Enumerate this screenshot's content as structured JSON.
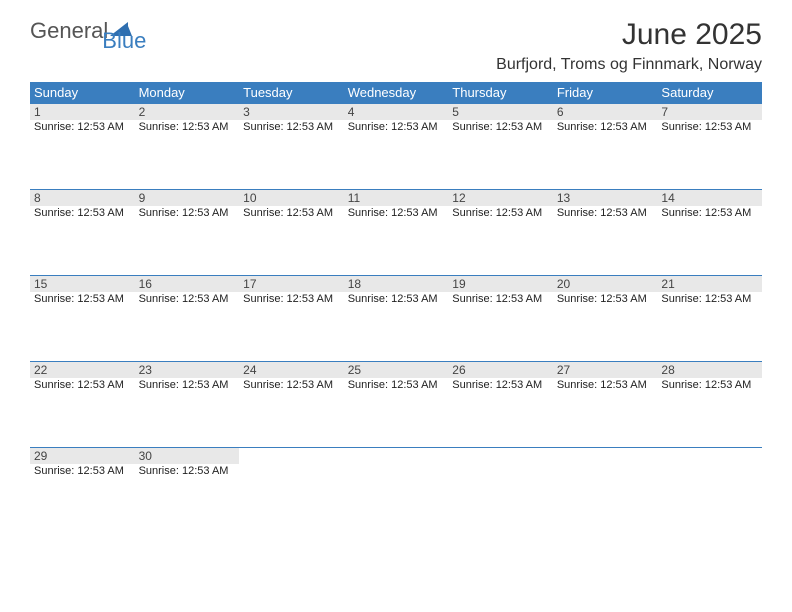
{
  "logo": {
    "text_general": "General",
    "text_blue": "Blue",
    "shape_color": "#2f6fb0"
  },
  "title": "June 2025",
  "location": "Burfjord, Troms og Finnmark, Norway",
  "colors": {
    "header_bg": "#3a7ebf",
    "header_text": "#ffffff",
    "daynum_bg": "#e8e8e8",
    "border": "#3a7ebf",
    "page_bg": "#ffffff"
  },
  "day_headers": [
    "Sunday",
    "Monday",
    "Tuesday",
    "Wednesday",
    "Thursday",
    "Friday",
    "Saturday"
  ],
  "weeks": [
    [
      {
        "num": "1",
        "info": "Sunrise: 12:53 AM"
      },
      {
        "num": "2",
        "info": "Sunrise: 12:53 AM"
      },
      {
        "num": "3",
        "info": "Sunrise: 12:53 AM"
      },
      {
        "num": "4",
        "info": "Sunrise: 12:53 AM"
      },
      {
        "num": "5",
        "info": "Sunrise: 12:53 AM"
      },
      {
        "num": "6",
        "info": "Sunrise: 12:53 AM"
      },
      {
        "num": "7",
        "info": "Sunrise: 12:53 AM"
      }
    ],
    [
      {
        "num": "8",
        "info": "Sunrise: 12:53 AM"
      },
      {
        "num": "9",
        "info": "Sunrise: 12:53 AM"
      },
      {
        "num": "10",
        "info": "Sunrise: 12:53 AM"
      },
      {
        "num": "11",
        "info": "Sunrise: 12:53 AM"
      },
      {
        "num": "12",
        "info": "Sunrise: 12:53 AM"
      },
      {
        "num": "13",
        "info": "Sunrise: 12:53 AM"
      },
      {
        "num": "14",
        "info": "Sunrise: 12:53 AM"
      }
    ],
    [
      {
        "num": "15",
        "info": "Sunrise: 12:53 AM"
      },
      {
        "num": "16",
        "info": "Sunrise: 12:53 AM"
      },
      {
        "num": "17",
        "info": "Sunrise: 12:53 AM"
      },
      {
        "num": "18",
        "info": "Sunrise: 12:53 AM"
      },
      {
        "num": "19",
        "info": "Sunrise: 12:53 AM"
      },
      {
        "num": "20",
        "info": "Sunrise: 12:53 AM"
      },
      {
        "num": "21",
        "info": "Sunrise: 12:53 AM"
      }
    ],
    [
      {
        "num": "22",
        "info": "Sunrise: 12:53 AM"
      },
      {
        "num": "23",
        "info": "Sunrise: 12:53 AM"
      },
      {
        "num": "24",
        "info": "Sunrise: 12:53 AM"
      },
      {
        "num": "25",
        "info": "Sunrise: 12:53 AM"
      },
      {
        "num": "26",
        "info": "Sunrise: 12:53 AM"
      },
      {
        "num": "27",
        "info": "Sunrise: 12:53 AM"
      },
      {
        "num": "28",
        "info": "Sunrise: 12:53 AM"
      }
    ],
    [
      {
        "num": "29",
        "info": "Sunrise: 12:53 AM"
      },
      {
        "num": "30",
        "info": "Sunrise: 12:53 AM"
      },
      null,
      null,
      null,
      null,
      null
    ]
  ]
}
